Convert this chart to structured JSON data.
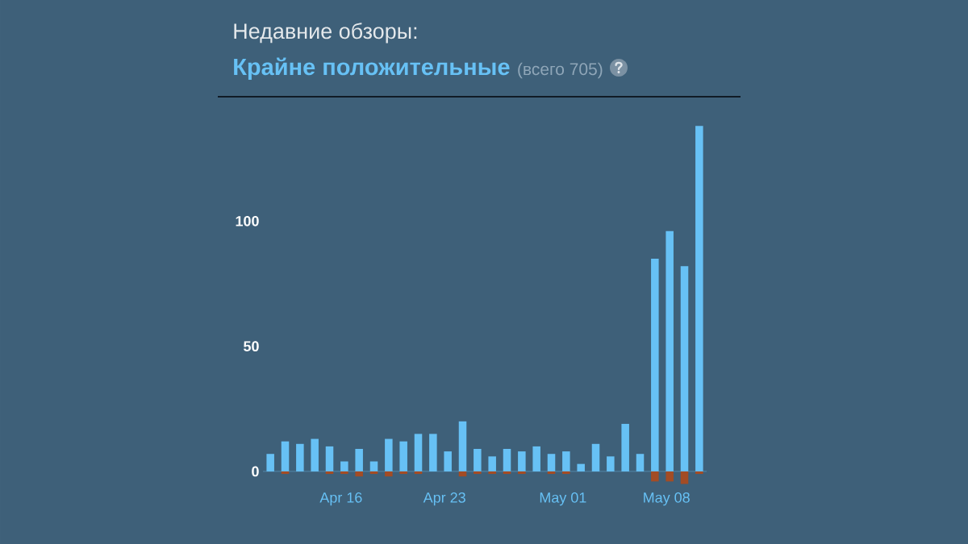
{
  "chart_data": {
    "type": "bar",
    "title": "Недавние обзоры:",
    "subtitle": "Крайне положительные",
    "annotations": [
      "(всего 705)"
    ],
    "categories": [
      null,
      null,
      null,
      null,
      null,
      "Apr 16",
      null,
      null,
      null,
      null,
      null,
      null,
      "Apr 23",
      null,
      null,
      null,
      null,
      null,
      null,
      null,
      "May 01",
      null,
      null,
      null,
      null,
      null,
      null,
      "May 08",
      null,
      null
    ],
    "series": [
      {
        "color": "#67c1f5",
        "values": [
          7,
          12,
          11,
          13,
          10,
          4,
          9,
          4,
          13,
          12,
          15,
          15,
          8,
          20,
          9,
          6,
          9,
          8,
          10,
          7,
          8,
          3,
          11,
          6,
          19,
          7,
          85,
          96,
          82,
          138
        ]
      },
      {
        "color": "#a34c25",
        "values": [
          null,
          -1,
          null,
          null,
          -1,
          -1,
          -2,
          -1,
          -2,
          -1,
          -1,
          null,
          null,
          -2,
          -1,
          -1,
          -1,
          -1,
          null,
          -1,
          -1,
          null,
          null,
          null,
          null,
          null,
          -4,
          -4,
          -5,
          -1
        ]
      }
    ],
    "stacked": true,
    "ylim": [
      -5,
      138
    ],
    "yticks": [
      0,
      50,
      100
    ]
  }
}
